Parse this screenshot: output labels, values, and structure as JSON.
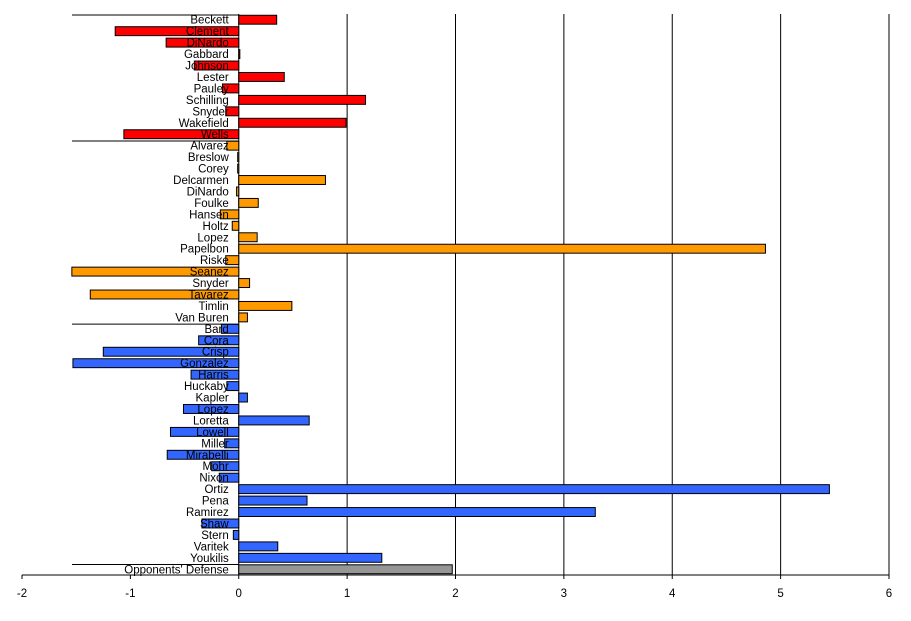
{
  "chart_data": {
    "type": "bar",
    "orientation": "horizontal",
    "title": "",
    "xlabel": "",
    "ylabel": "",
    "xlim": [
      -2,
      6
    ],
    "x_ticks": [
      "-2",
      "-1",
      "0",
      "1",
      "2",
      "3",
      "4",
      "5",
      "6"
    ],
    "grid": true,
    "legend": "none",
    "colors": {
      "starters": "#ff0000",
      "relievers": "#ff9900",
      "position": "#3366ff",
      "defense": "#969696"
    },
    "groups": [
      {
        "color_key": "starters",
        "bars": [
          {
            "label": "Beckett",
            "value": 0.35
          },
          {
            "label": "Clement",
            "value": -1.14
          },
          {
            "label": "DiNardo",
            "value": -0.67
          },
          {
            "label": "Gabbard",
            "value": 0.01
          },
          {
            "label": "Johnson",
            "value": -0.41
          },
          {
            "label": "Lester",
            "value": 0.42
          },
          {
            "label": "Pauley",
            "value": -0.15
          },
          {
            "label": "Schilling",
            "value": 1.17
          },
          {
            "label": "Snyder",
            "value": -0.12
          },
          {
            "label": "Wakefield",
            "value": 0.99
          },
          {
            "label": "Wells",
            "value": -1.06
          }
        ]
      },
      {
        "color_key": "relievers",
        "bars": [
          {
            "label": "Alvarez",
            "value": -0.11
          },
          {
            "label": "Breslow",
            "value": -0.01
          },
          {
            "label": "Corey",
            "value": -0.01
          },
          {
            "label": "Delcarmen",
            "value": 0.8
          },
          {
            "label": "DiNardo",
            "value": -0.02
          },
          {
            "label": "Foulke",
            "value": 0.18
          },
          {
            "label": "Hansen",
            "value": -0.17
          },
          {
            "label": "Holtz",
            "value": -0.06
          },
          {
            "label": "Lopez",
            "value": 0.17
          },
          {
            "label": "Papelbon",
            "value": 4.86
          },
          {
            "label": "Riske",
            "value": -0.12
          },
          {
            "label": "Seanez",
            "value": -1.54
          },
          {
            "label": "Snyder",
            "value": 0.1
          },
          {
            "label": "Tavarez",
            "value": -1.37
          },
          {
            "label": "Timlin",
            "value": 0.49
          },
          {
            "label": "Van Buren",
            "value": 0.08
          }
        ]
      },
      {
        "color_key": "position",
        "bars": [
          {
            "label": "Bard",
            "value": -0.16
          },
          {
            "label": "Cora",
            "value": -0.37
          },
          {
            "label": "Crisp",
            "value": -1.25
          },
          {
            "label": "Gonzalez",
            "value": -1.53
          },
          {
            "label": "Harris",
            "value": -0.44
          },
          {
            "label": "Huckaby",
            "value": -0.11
          },
          {
            "label": "Kapler",
            "value": 0.08
          },
          {
            "label": "Lopez",
            "value": -0.51
          },
          {
            "label": "Loretta",
            "value": 0.65
          },
          {
            "label": "Lowell",
            "value": -0.63
          },
          {
            "label": "Miller",
            "value": -0.13
          },
          {
            "label": "Mirabelli",
            "value": -0.66
          },
          {
            "label": "Mohr",
            "value": -0.25
          },
          {
            "label": "Nixon",
            "value": -0.18
          },
          {
            "label": "Ortiz",
            "value": 5.45
          },
          {
            "label": "Pena",
            "value": 0.63
          },
          {
            "label": "Ramirez",
            "value": 3.29
          },
          {
            "label": "Shaw",
            "value": -0.34
          },
          {
            "label": "Stern",
            "value": -0.05
          },
          {
            "label": "Varitek",
            "value": 0.36
          },
          {
            "label": "Youkilis",
            "value": 1.32
          }
        ]
      },
      {
        "color_key": "defense",
        "bars": [
          {
            "label": "Opponents' Defense",
            "value": 1.97
          }
        ]
      }
    ]
  }
}
